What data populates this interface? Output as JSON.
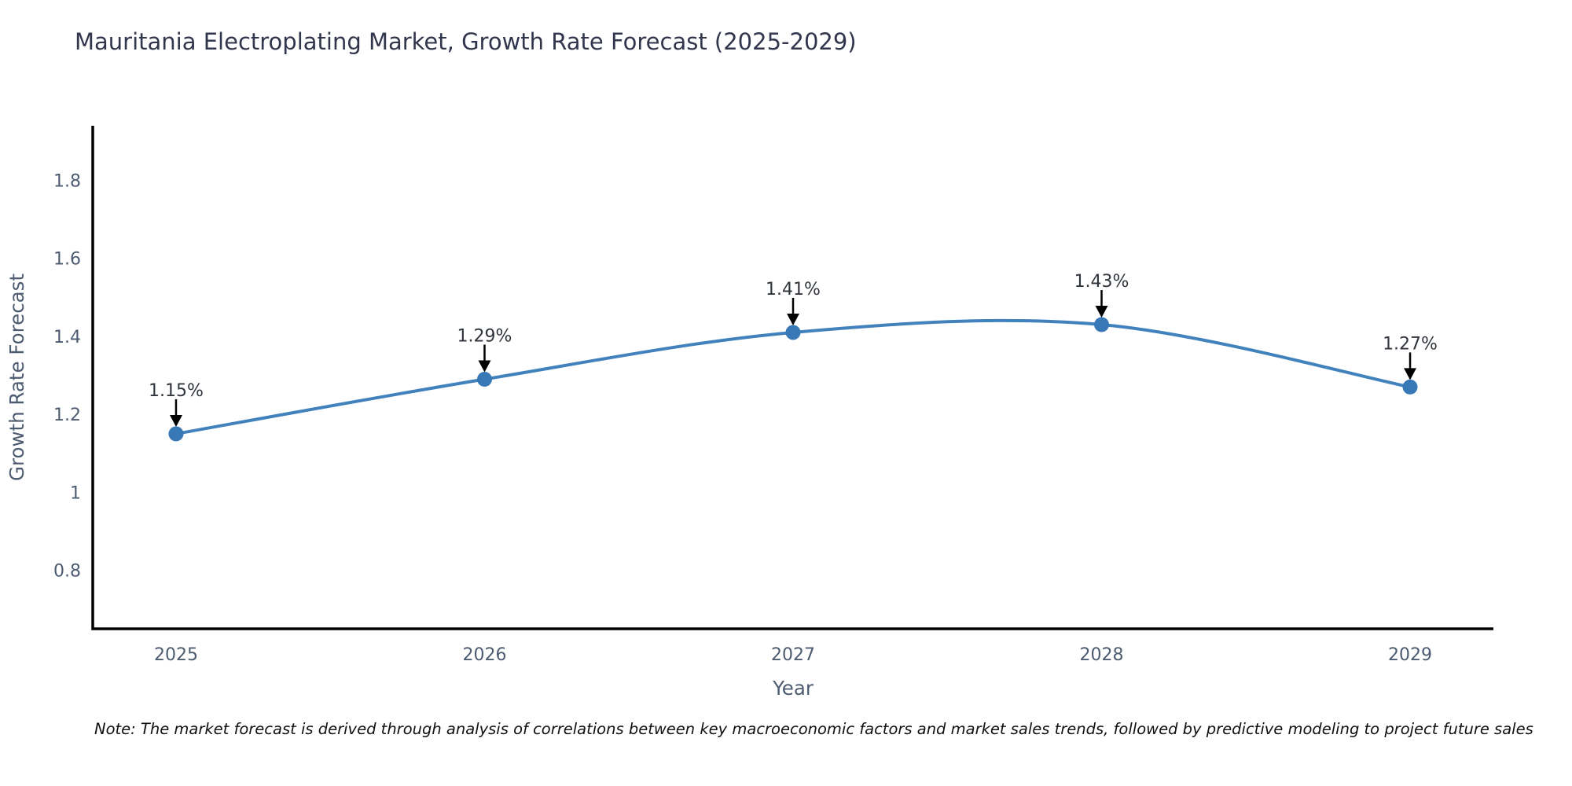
{
  "title": "Mauritania Electroplating Market, Growth Rate Forecast (2025-2029)",
  "note": "Note: The market forecast is derived through analysis of correlations between key macroeconomic factors and market sales trends, followed by predictive modeling to project future sales",
  "chart_data": {
    "type": "line",
    "title": "Mauritania Electroplating Market, Growth Rate Forecast (2025-2029)",
    "xlabel": "Year",
    "ylabel": "Growth Rate Forecast",
    "x": [
      2025,
      2026,
      2027,
      2028,
      2029
    ],
    "values": [
      1.15,
      1.29,
      1.41,
      1.43,
      1.27
    ],
    "point_labels": [
      "1.15%",
      "1.29%",
      "1.41%",
      "1.43%",
      "1.27%"
    ],
    "xticks": [
      2025,
      2026,
      2027,
      2028,
      2029
    ],
    "yticks": [
      0.8,
      1,
      1.2,
      1.4,
      1.6,
      1.8
    ],
    "xlim": [
      2024.73,
      2029.27
    ],
    "ylim": [
      0.65,
      1.94
    ],
    "grid": false,
    "legend": null,
    "colors": {
      "line": "#4182bd",
      "marker": "#3878b6",
      "axis": "#000000",
      "tick_label": "#4d5b70",
      "axis_label": "#4d5b70",
      "title": "#31364d",
      "annotation_text": "#30343c",
      "annotation_arrow": "#000000"
    }
  }
}
